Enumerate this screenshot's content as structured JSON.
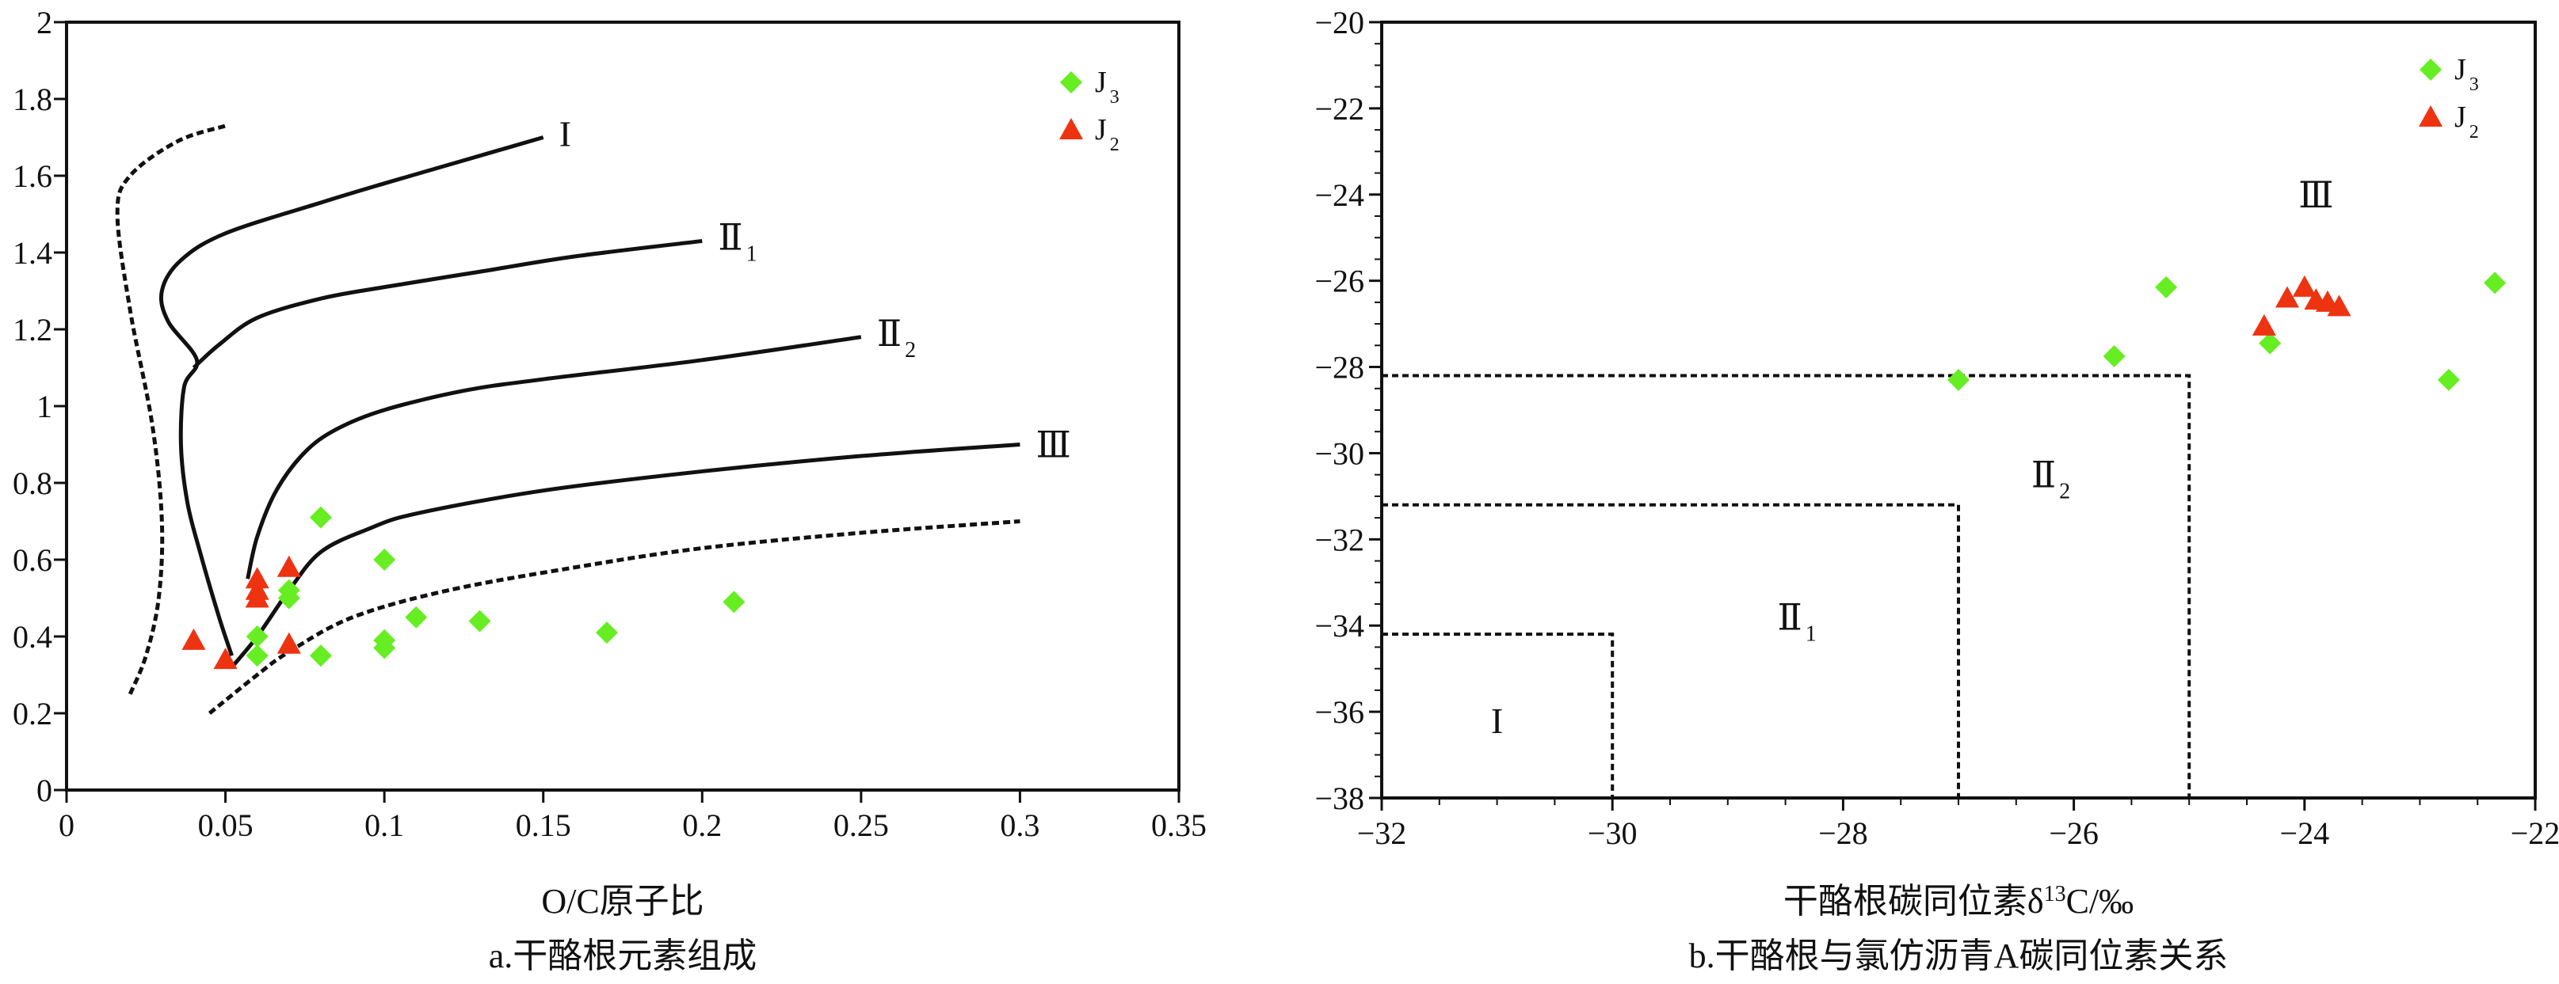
{
  "colors": {
    "J3": "#66ee22",
    "J2": "#ee3311",
    "line": "#111111"
  },
  "chart_data": [
    {
      "type": "scatter",
      "xlabel": "O/C原子比",
      "ylabel": "",
      "caption": "a.干酪根元素组成",
      "xlim": [
        0,
        0.35
      ],
      "ylim": [
        0,
        2
      ],
      "xticks": [
        0,
        0.05,
        0.1,
        0.15,
        0.2,
        0.25,
        0.3,
        0.35
      ],
      "xtick_labels": [
        "0",
        "0.05",
        "0.1",
        "0.15",
        "0.2",
        "0.25",
        "0.3",
        "0.35"
      ],
      "yticks": [
        0,
        0.2,
        0.4,
        0.6,
        0.8,
        1,
        1.2,
        1.4,
        1.6,
        1.8,
        2
      ],
      "ytick_labels": [
        "0",
        "0.2",
        "0.4",
        "0.6",
        "0.8",
        "1",
        "1.2",
        "1.4",
        "1.6",
        "1.8",
        "2"
      ],
      "legend": [
        {
          "base": "J",
          "sub": "3",
          "marker": "diamond",
          "color": "#66ee22"
        },
        {
          "base": "J",
          "sub": "2",
          "marker": "triangle",
          "color": "#ee3311"
        }
      ],
      "series": [
        {
          "name": "J3",
          "marker": "diamond",
          "points": [
            [
              0.06,
              0.35
            ],
            [
              0.06,
              0.4
            ],
            [
              0.07,
              0.5
            ],
            [
              0.07,
              0.52
            ],
            [
              0.08,
              0.71
            ],
            [
              0.08,
              0.35
            ],
            [
              0.1,
              0.6
            ],
            [
              0.1,
              0.37
            ],
            [
              0.1,
              0.39
            ],
            [
              0.11,
              0.45
            ],
            [
              0.13,
              0.44
            ],
            [
              0.17,
              0.41
            ],
            [
              0.21,
              0.49
            ]
          ]
        },
        {
          "name": "J2",
          "marker": "triangle",
          "points": [
            [
              0.04,
              0.39
            ],
            [
              0.05,
              0.34
            ],
            [
              0.06,
              0.5
            ],
            [
              0.06,
              0.52
            ],
            [
              0.06,
              0.55
            ],
            [
              0.07,
              0.58
            ],
            [
              0.07,
              0.38
            ]
          ]
        }
      ],
      "curves": [
        {
          "label": "I",
          "style": "solid",
          "points": [
            [
              0.052,
              0.35
            ],
            [
              0.048,
              0.45
            ],
            [
              0.042,
              0.62
            ],
            [
              0.038,
              0.75
            ],
            [
              0.036,
              0.9
            ],
            [
              0.037,
              1.05
            ],
            [
              0.041,
              1.12
            ],
            [
              0.032,
              1.22
            ],
            [
              0.03,
              1.3
            ],
            [
              0.036,
              1.38
            ],
            [
              0.05,
              1.45
            ],
            [
              0.08,
              1.53
            ],
            [
              0.1,
              1.58
            ],
            [
              0.125,
              1.64
            ],
            [
              0.15,
              1.7
            ]
          ]
        },
        {
          "label": "Ⅱ1",
          "style": "solid",
          "points": [
            [
              0.04,
              1.1
            ],
            [
              0.048,
              1.16
            ],
            [
              0.06,
              1.23
            ],
            [
              0.08,
              1.28
            ],
            [
              0.1,
              1.31
            ],
            [
              0.13,
              1.35
            ],
            [
              0.16,
              1.39
            ],
            [
              0.2,
              1.43
            ]
          ]
        },
        {
          "label": "Ⅱ2",
          "style": "solid",
          "points": [
            [
              0.057,
              0.55
            ],
            [
              0.06,
              0.66
            ],
            [
              0.066,
              0.78
            ],
            [
              0.075,
              0.88
            ],
            [
              0.085,
              0.94
            ],
            [
              0.1,
              0.99
            ],
            [
              0.125,
              1.04
            ],
            [
              0.15,
              1.07
            ],
            [
              0.2,
              1.12
            ],
            [
              0.25,
              1.18
            ]
          ]
        },
        {
          "label": "Ⅲ",
          "style": "solid",
          "points": [
            [
              0.052,
              0.32
            ],
            [
              0.06,
              0.4
            ],
            [
              0.07,
              0.52
            ],
            [
              0.08,
              0.62
            ],
            [
              0.095,
              0.68
            ],
            [
              0.11,
              0.72
            ],
            [
              0.15,
              0.78
            ],
            [
              0.2,
              0.83
            ],
            [
              0.25,
              0.87
            ],
            [
              0.3,
              0.9
            ]
          ]
        },
        {
          "label": "",
          "style": "dashed",
          "points": [
            [
              0.02,
              0.25
            ],
            [
              0.025,
              0.35
            ],
            [
              0.029,
              0.5
            ],
            [
              0.03,
              0.7
            ],
            [
              0.027,
              0.95
            ],
            [
              0.02,
              1.25
            ],
            [
              0.016,
              1.5
            ],
            [
              0.02,
              1.6
            ],
            [
              0.035,
              1.69
            ],
            [
              0.05,
              1.73
            ]
          ]
        },
        {
          "label": "",
          "style": "dashed",
          "points": [
            [
              0.045,
              0.2
            ],
            [
              0.06,
              0.3
            ],
            [
              0.07,
              0.36
            ],
            [
              0.09,
              0.45
            ],
            [
              0.12,
              0.52
            ],
            [
              0.16,
              0.58
            ],
            [
              0.2,
              0.63
            ],
            [
              0.25,
              0.67
            ],
            [
              0.3,
              0.7
            ]
          ]
        }
      ],
      "curve_labels": [
        {
          "base": "I",
          "sub": "",
          "x": 0.155,
          "y": 1.71
        },
        {
          "base": "Ⅱ",
          "sub": "1",
          "x": 0.205,
          "y": 1.44
        },
        {
          "base": "Ⅱ",
          "sub": "2",
          "x": 0.255,
          "y": 1.19
        },
        {
          "base": "Ⅲ",
          "sub": "",
          "x": 0.305,
          "y": 0.9
        }
      ]
    },
    {
      "type": "scatter",
      "xlabel": "干酪根碳同位素δ13C/‰",
      "xlabel_parts": {
        "pre": "干酪根碳同位素δ",
        "sup": "13",
        "post": "C/‰"
      },
      "ylabel": "",
      "caption": "b.干酪根与氯仿沥青A碳同位素关系",
      "xlim": [
        -32,
        -22
      ],
      "ylim": [
        -38,
        -20
      ],
      "xticks": [
        -32,
        -30,
        -28,
        -26,
        -24,
        -22
      ],
      "xtick_labels": [
        "−32",
        "−30",
        "−28",
        "−26",
        "−24",
        "−22"
      ],
      "yticks": [
        -38,
        -36,
        -34,
        -32,
        -30,
        -28,
        -26,
        -24,
        -22,
        -20
      ],
      "ytick_labels": [
        "−38",
        "−36",
        "−34",
        "−32",
        "−30",
        "−28",
        "−26",
        "−24",
        "−22",
        "−20"
      ],
      "legend": [
        {
          "base": "J",
          "sub": "3",
          "marker": "diamond",
          "color": "#66ee22"
        },
        {
          "base": "J",
          "sub": "2",
          "marker": "triangle",
          "color": "#ee3311"
        }
      ],
      "series": [
        {
          "name": "J3",
          "marker": "diamond",
          "points": [
            [
              -27.0,
              -28.3
            ],
            [
              -25.65,
              -27.75
            ],
            [
              -25.2,
              -26.15
            ],
            [
              -24.3,
              -27.45
            ],
            [
              -22.75,
              -28.3
            ],
            [
              -22.35,
              -26.05
            ]
          ]
        },
        {
          "name": "J2",
          "marker": "triangle",
          "points": [
            [
              -24.35,
              -27.05
            ],
            [
              -24.15,
              -26.4
            ],
            [
              -24.0,
              -26.15
            ],
            [
              -23.9,
              -26.45
            ],
            [
              -23.8,
              -26.5
            ],
            [
              -23.7,
              -26.6
            ]
          ]
        }
      ],
      "regions": [
        {
          "x_max": -30,
          "y_max": -34.2
        },
        {
          "x_max": -27,
          "y_max": -31.2
        },
        {
          "x_max": -25,
          "y_max": -28.2
        }
      ],
      "region_labels": [
        {
          "base": "I",
          "sub": "",
          "x": -31.0,
          "y": -36.2
        },
        {
          "base": "Ⅱ",
          "sub": "1",
          "x": -28.4,
          "y": -33.8
        },
        {
          "base": "Ⅱ",
          "sub": "2",
          "x": -26.2,
          "y": -30.5
        },
        {
          "base": "Ⅲ",
          "sub": "",
          "x": -23.9,
          "y": -24.0
        }
      ]
    }
  ]
}
